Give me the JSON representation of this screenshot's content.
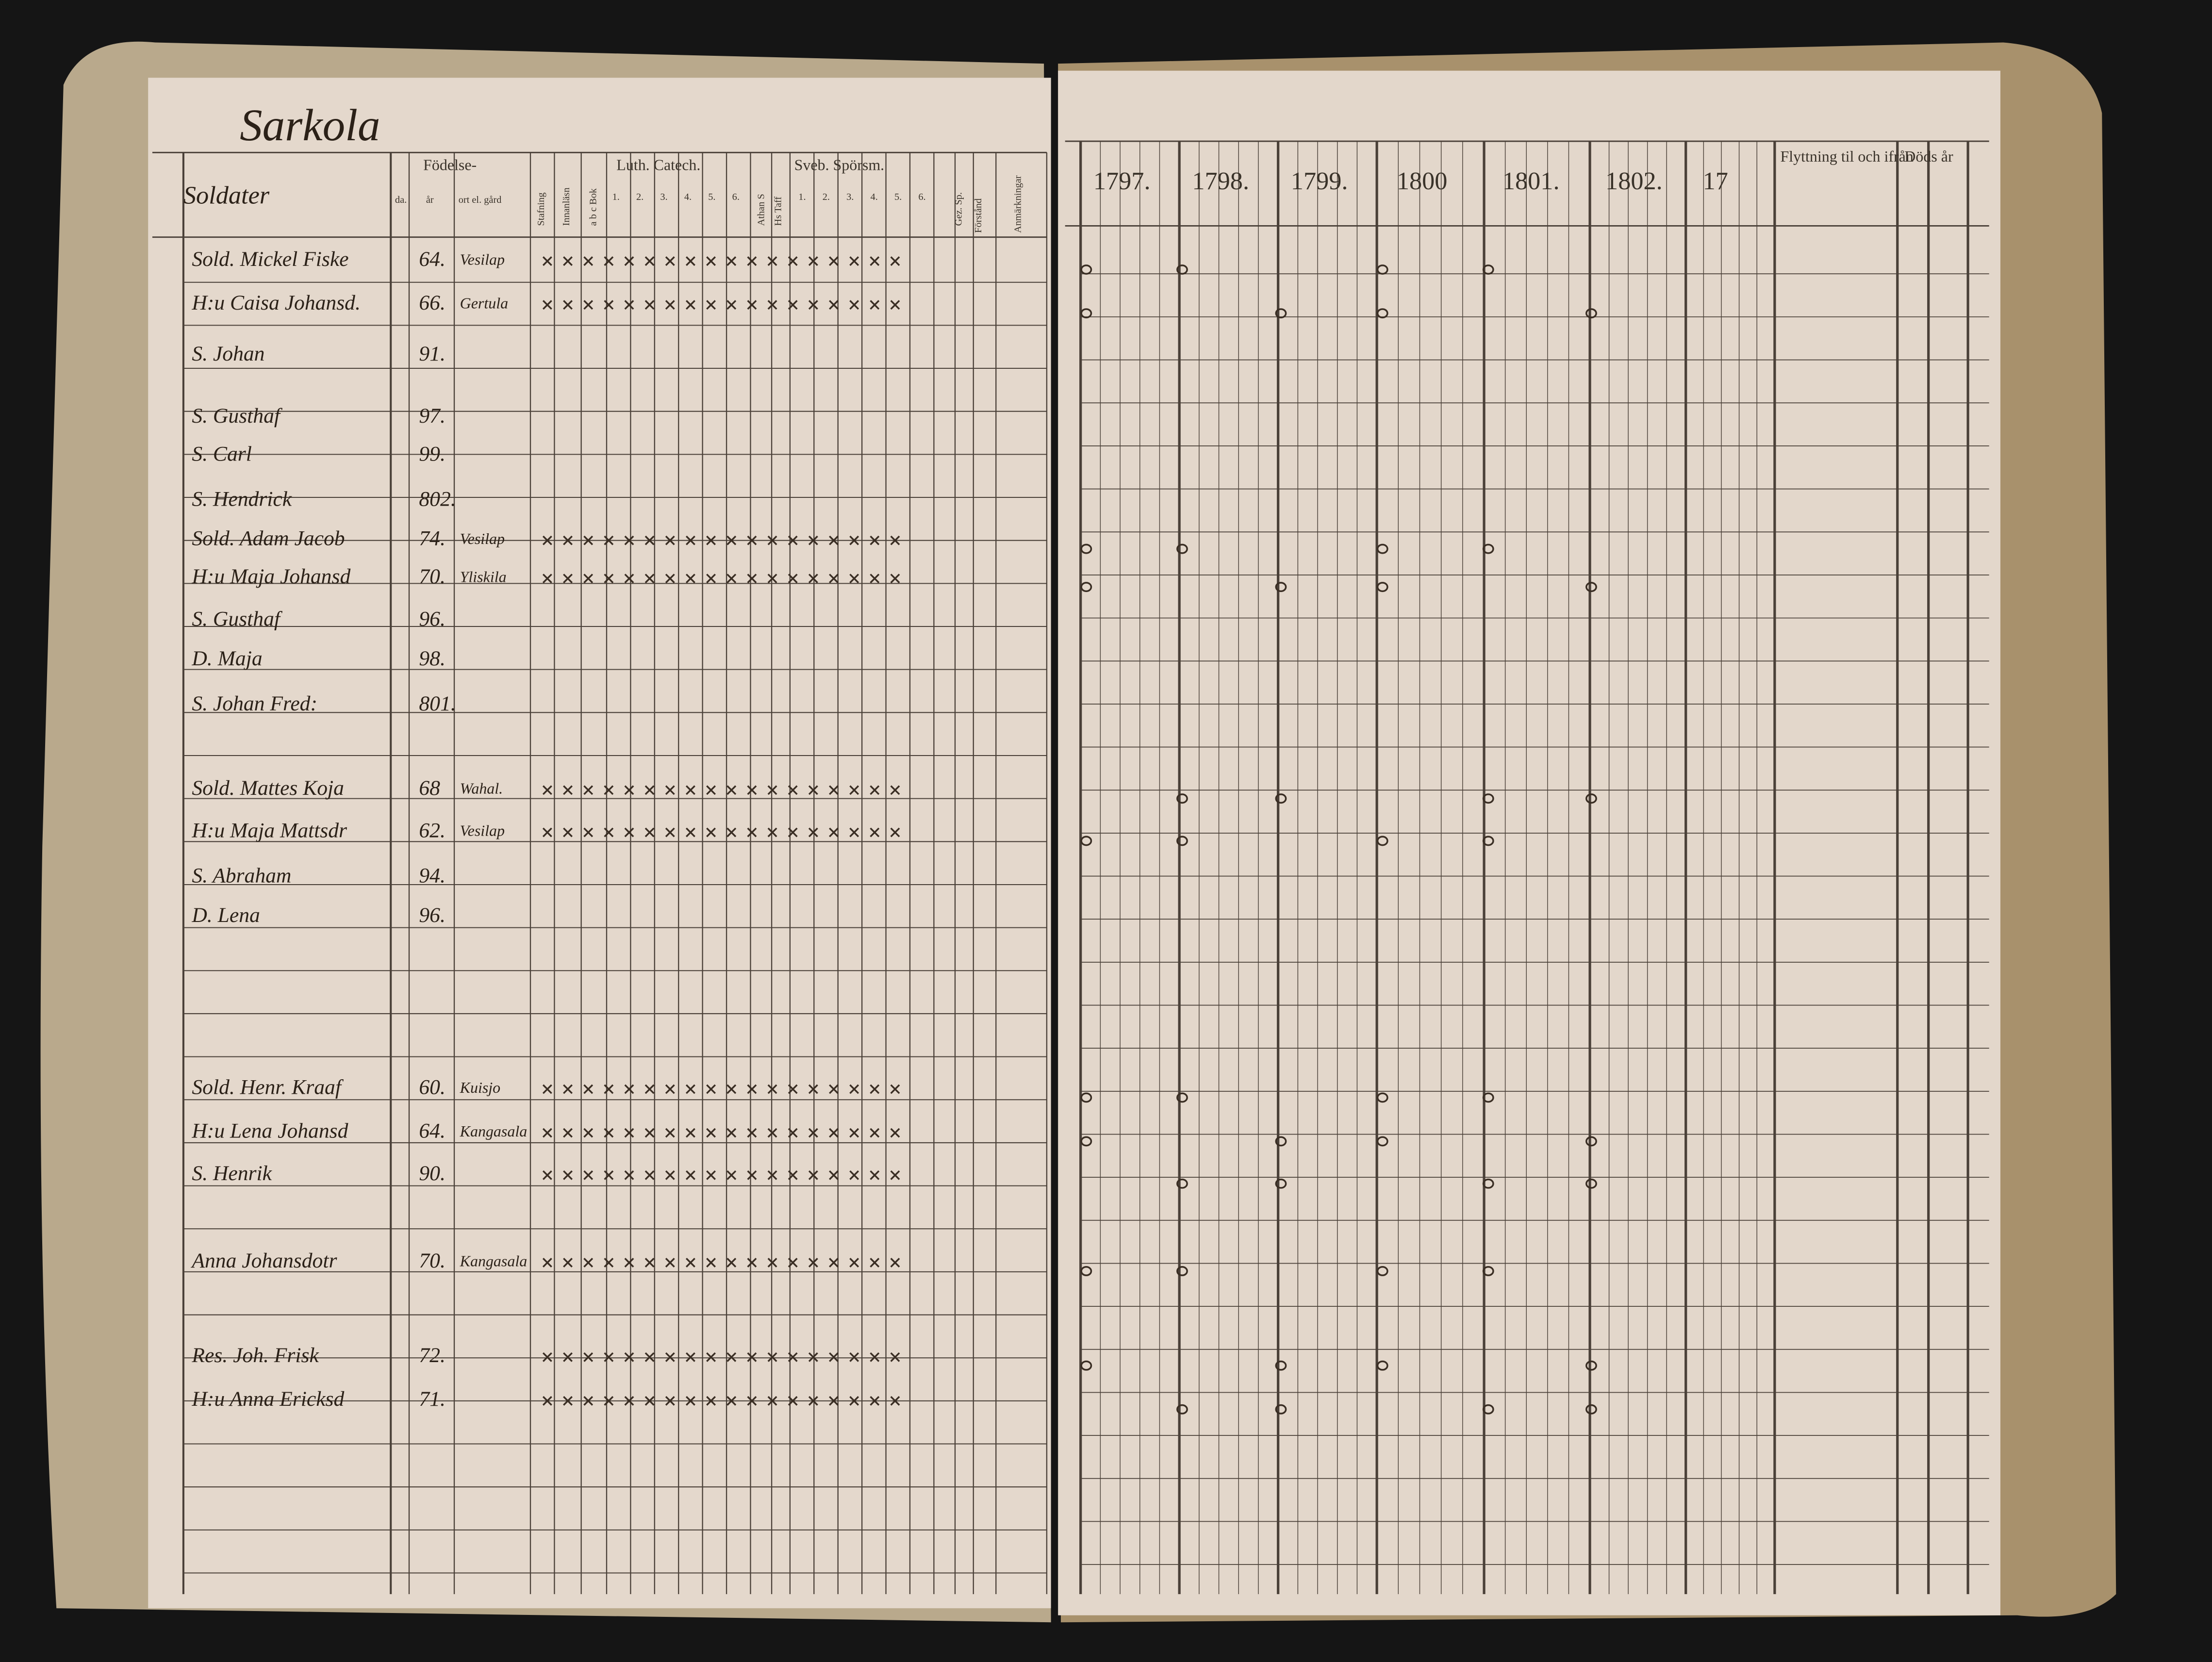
{
  "left_page": {
    "title": "Sarkola",
    "column_header": "Soldater",
    "headers": {
      "birth": "Födelse-",
      "day": "da.",
      "year": "år",
      "place": "ort el. gård",
      "spelling": "Stafning",
      "reading": "Innanläsn",
      "abc": "a b c Bok",
      "luth": "Luth. Catech.",
      "luth_cols": [
        "1.",
        "2.",
        "3.",
        "4.",
        "5.",
        "6."
      ],
      "athan": "Athan S",
      "hastaff": "Hs Taff",
      "sveb": "Sveb. Spörsm.",
      "sveb_cols": [
        "1.",
        "2.",
        "3.",
        "4.",
        "5.",
        "6."
      ],
      "gez": "Gez. Sp.",
      "forstand": "Förstånd",
      "notes": "Anmärkningar"
    },
    "rows": [
      {
        "name": "Sold. Mickel Fiske",
        "year": "64.",
        "place": "Vesilap"
      },
      {
        "name": "H:u Caisa Johansd.",
        "year": "66.",
        "place": "Gertula"
      },
      {
        "name": "S. Johan",
        "year": "91."
      },
      {
        "name": "S. Gusthaf",
        "year": "97."
      },
      {
        "name": "S. Carl",
        "year": "99."
      },
      {
        "name": "S. Hendrick",
        "year": "802."
      },
      {
        "name": "Sold. Adam Jacob",
        "year": "74.",
        "place": "Vesilap"
      },
      {
        "name": "H:u Maja Johansd",
        "year": "70.",
        "place": "Yliskila"
      },
      {
        "name": "S. Gusthaf",
        "year": "96."
      },
      {
        "name": "D. Maja",
        "year": "98."
      },
      {
        "name": "S. Johan Fred:",
        "year": "801."
      },
      {
        "name": "Sold. Mattes Koja",
        "year": "68",
        "place": "Wahal."
      },
      {
        "name": "H:u Maja Mattsdr",
        "year": "62.",
        "place": "Vesilap"
      },
      {
        "name": "S. Abraham",
        "year": "94."
      },
      {
        "name": "D. Lena",
        "year": "96."
      },
      {
        "name": "Sold. Henr. Kraaf",
        "year": "60.",
        "place": "Kuisjo"
      },
      {
        "name": "H:u Lena Johansd",
        "year": "64.",
        "place": "Kangasala"
      },
      {
        "name": "S. Henrik",
        "year": "90."
      },
      {
        "name": "Anna Johansdotr",
        "year": "70.",
        "place": "Kangasala"
      },
      {
        "name": "Res. Joh. Frisk",
        "year": "72."
      },
      {
        "name": "H:u Anna Ericksd",
        "year": "71."
      }
    ]
  },
  "right_page": {
    "years": [
      "1797.",
      "1798.",
      "1799.",
      "1800",
      "1801.",
      "1802.",
      "17"
    ],
    "moving": "Flyttning til och ifrån",
    "death": "Döds år"
  }
}
